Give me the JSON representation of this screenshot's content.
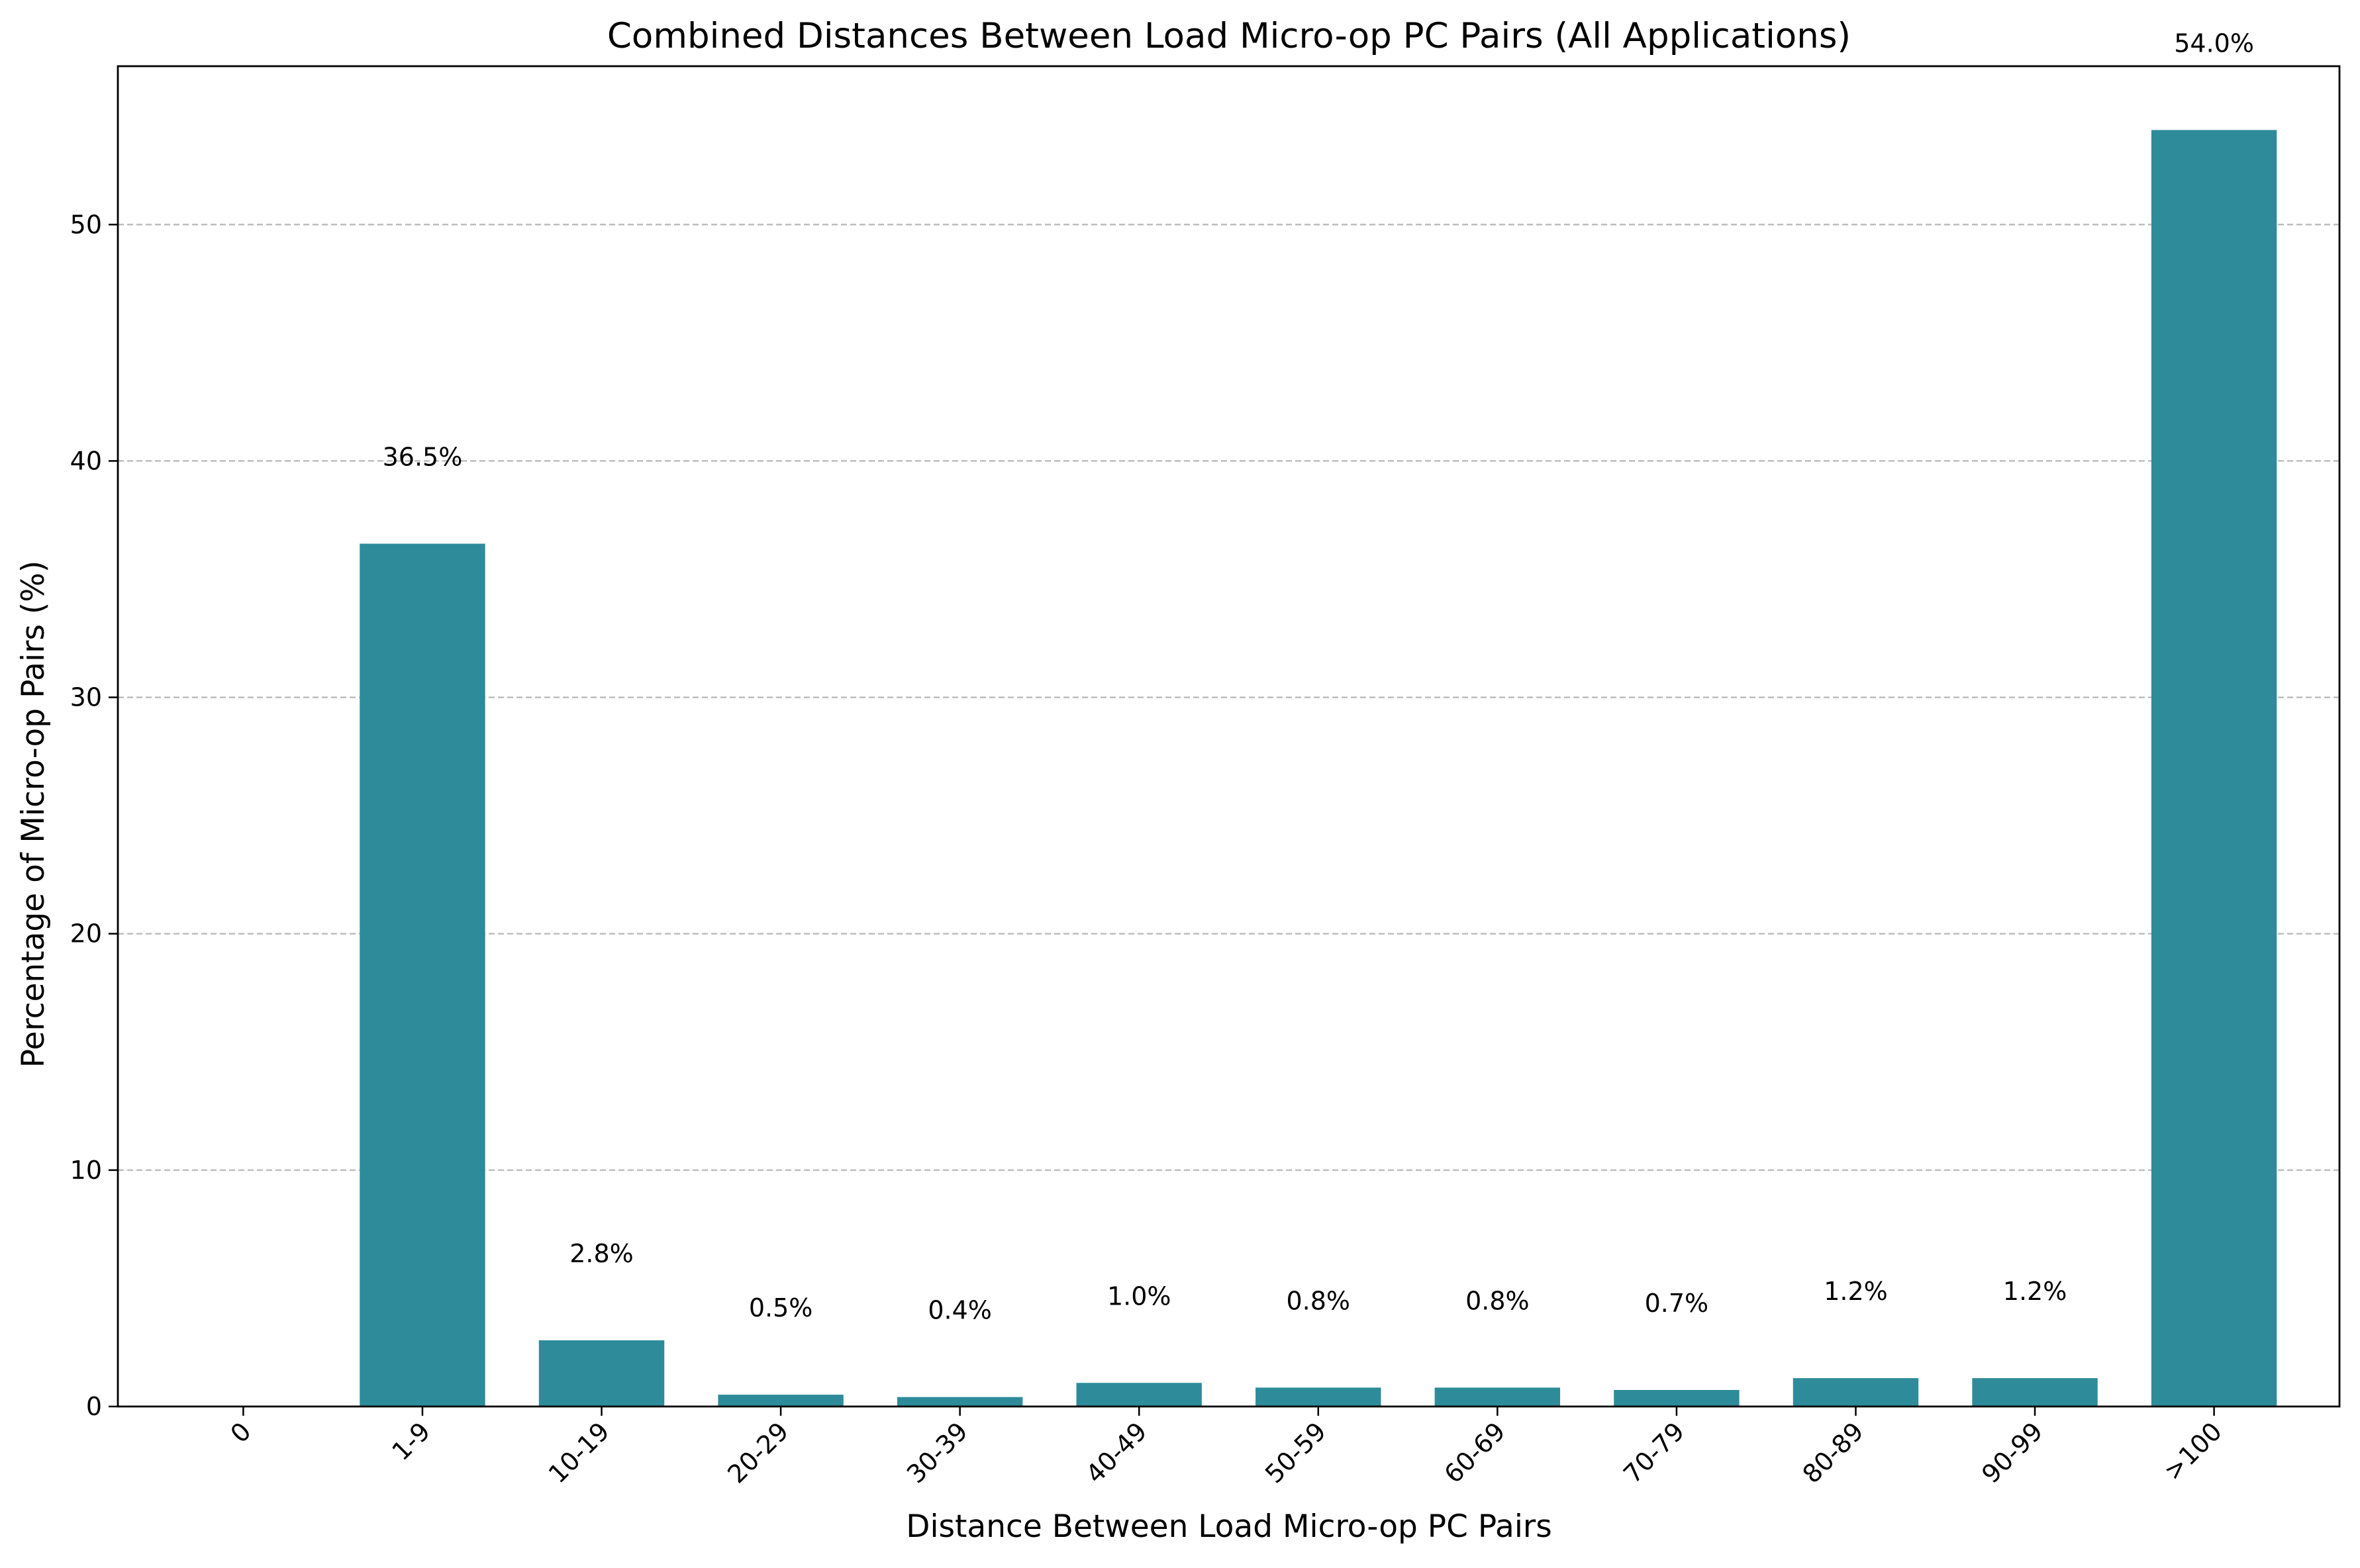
{
  "chart_data": {
    "type": "bar",
    "title": "Combined Distances Between Load Micro-op PC Pairs (All Applications)",
    "xlabel": "Distance Between Load Micro-op PC Pairs",
    "ylabel": "Percentage of Micro-op Pairs (%)",
    "categories": [
      "0",
      "1-9",
      "10-19",
      "20-29",
      "30-39",
      "40-49",
      "50-59",
      "60-69",
      "70-79",
      "80-89",
      "90-99",
      ">100"
    ],
    "values": [
      0.0,
      36.5,
      2.8,
      0.5,
      0.4,
      1.0,
      0.8,
      0.8,
      0.7,
      1.2,
      1.2,
      54.0
    ],
    "data_labels": [
      "",
      "36.5%",
      "2.8%",
      "0.5%",
      "0.4%",
      "1.0%",
      "0.8%",
      "0.8%",
      "0.7%",
      "1.2%",
      "1.2%",
      "54.0%"
    ],
    "yticks": [
      0,
      10,
      20,
      30,
      40,
      50
    ],
    "ylim": [
      0,
      56.7
    ],
    "grid": "y-dashed",
    "bar_color": "#2e8b9a"
  }
}
